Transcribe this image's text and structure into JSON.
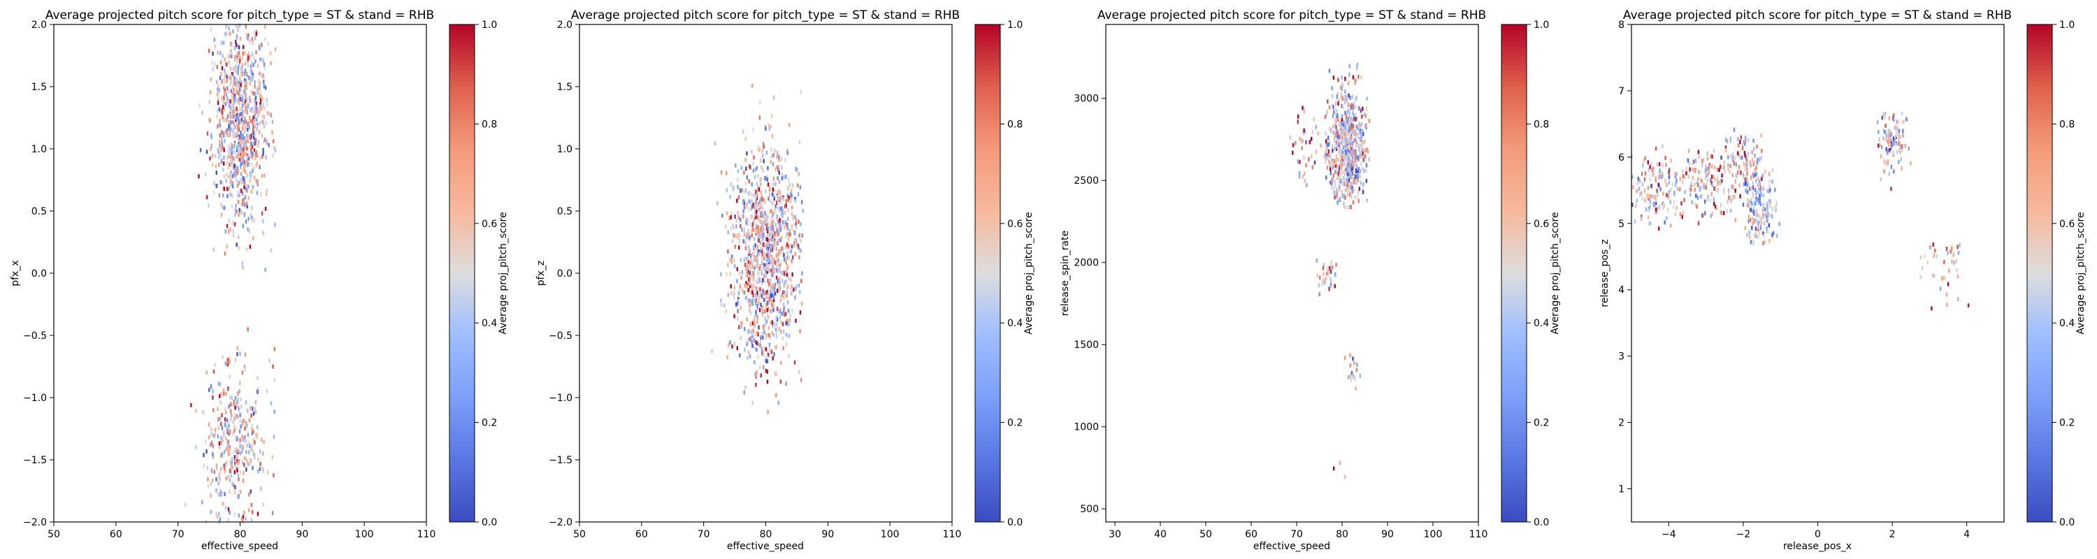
{
  "chart_data": [
    {
      "type": "heatmap",
      "title": "Average projected pitch score for pitch_type = ST & stand = RHB",
      "xlabel": "effective_speed",
      "ylabel": "pfx_x",
      "xlim": [
        50,
        110
      ],
      "ylim": [
        -2.0,
        2.0
      ],
      "xticks": [
        "50",
        "60",
        "70",
        "80",
        "90",
        "100",
        "110"
      ],
      "yticks": [
        "−2.0",
        "−1.5",
        "−1.0",
        "−0.5",
        "0.0",
        "0.5",
        "1.0",
        "1.5",
        "2.0"
      ],
      "colorbar": {
        "label": "Average proj_pitch_score",
        "range": [
          0.0,
          1.0
        ],
        "ticks": [
          "0.0",
          "0.2",
          "0.4",
          "0.6",
          "0.8",
          "1.0"
        ],
        "colormap": "coolwarm"
      },
      "clusters": [
        {
          "x_center": 80,
          "x_sd": 2.2,
          "y_center": 1.25,
          "y_sd": 0.45,
          "x_min": 72,
          "x_max": 86,
          "y_min": -0.2,
          "y_max": 2.0,
          "count": 900,
          "mean_score": 0.5
        },
        {
          "x_center": 79,
          "x_sd": 2.6,
          "y_center": -1.4,
          "y_sd": 0.4,
          "x_min": 68,
          "x_max": 86,
          "y_min": -2.0,
          "y_max": -0.45,
          "count": 380,
          "mean_score": 0.55
        }
      ]
    },
    {
      "type": "heatmap",
      "title": "Average projected pitch score for pitch_type = ST & stand = RHB",
      "xlabel": "effective_speed",
      "ylabel": "pfx_z",
      "xlim": [
        50,
        110
      ],
      "ylim": [
        -2.0,
        2.0
      ],
      "xticks": [
        "50",
        "60",
        "70",
        "80",
        "90",
        "100",
        "110"
      ],
      "yticks": [
        "−2.0",
        "−1.5",
        "−1.0",
        "−0.5",
        "0.0",
        "0.5",
        "1.0",
        "1.5",
        "2.0"
      ],
      "colorbar": {
        "label": "Average proj_pitch_score",
        "range": [
          0.0,
          1.0
        ],
        "ticks": [
          "0.0",
          "0.2",
          "0.4",
          "0.6",
          "0.8",
          "1.0"
        ],
        "colormap": "coolwarm"
      },
      "clusters": [
        {
          "x_center": 80,
          "x_sd": 2.8,
          "y_center": 0.15,
          "y_sd": 0.45,
          "x_min": 68,
          "x_max": 86,
          "y_min": -1.25,
          "y_max": 1.7,
          "count": 1100,
          "mean_score": 0.55
        }
      ]
    },
    {
      "type": "heatmap",
      "title": "Average projected pitch score for pitch_type = ST & stand = RHB",
      "xlabel": "effective_speed",
      "ylabel": "release_spin_rate",
      "xlim": [
        28,
        110
      ],
      "ylim": [
        420,
        3450
      ],
      "xticks": [
        "30",
        "40",
        "50",
        "60",
        "70",
        "80",
        "90",
        "100",
        "110"
      ],
      "yticks": [
        "500",
        "1000",
        "1500",
        "2000",
        "2500",
        "3000"
      ],
      "colorbar": {
        "label": "Average proj_pitch_score",
        "range": [
          0.0,
          1.0
        ],
        "ticks": [
          "0.0",
          "0.2",
          "0.4",
          "0.6",
          "0.8",
          "1.0"
        ],
        "colormap": "coolwarm"
      },
      "clusters": [
        {
          "x_center": 81,
          "x_sd": 2.3,
          "y_center": 2700,
          "y_sd": 170,
          "x_min": 76,
          "x_max": 86,
          "y_min": 2300,
          "y_max": 3300,
          "count": 650,
          "mean_score": 0.5
        },
        {
          "x_center": 72,
          "x_sd": 1.8,
          "y_center": 2700,
          "y_sd": 120,
          "x_min": 68,
          "x_max": 76,
          "y_min": 2400,
          "y_max": 2950,
          "count": 40,
          "mean_score": 0.6
        },
        {
          "x_center": 76.5,
          "x_sd": 1.2,
          "y_center": 1900,
          "y_sd": 70,
          "x_min": 74,
          "x_max": 79,
          "y_min": 1750,
          "y_max": 2050,
          "count": 35,
          "mean_score": 0.55
        },
        {
          "x_center": 82,
          "x_sd": 1.0,
          "y_center": 1350,
          "y_sd": 60,
          "x_min": 80,
          "x_max": 84,
          "y_min": 1200,
          "y_max": 1450,
          "count": 18,
          "mean_score": 0.5
        },
        {
          "x_center": 80,
          "x_sd": 1.0,
          "y_center": 750,
          "y_sd": 120,
          "x_min": 78,
          "x_max": 82,
          "y_min": 550,
          "y_max": 900,
          "count": 5,
          "mean_score": 0.7
        }
      ]
    },
    {
      "type": "heatmap",
      "title": "Average projected pitch score for pitch_type = ST & stand = RHB",
      "xlabel": "release_pos_x",
      "ylabel": "release_pos_z",
      "xlim": [
        -5.0,
        5.0
      ],
      "ylim": [
        0.5,
        8.0
      ],
      "xticks": [
        "−4",
        "−2",
        "0",
        "2",
        "4"
      ],
      "yticks": [
        "1",
        "2",
        "3",
        "4",
        "5",
        "6",
        "7",
        "8"
      ],
      "colorbar": {
        "label": "Average proj_pitch_score",
        "range": [
          0.0,
          1.0
        ],
        "ticks": [
          "0.0",
          "0.2",
          "0.4",
          "0.6",
          "0.8",
          "1.0"
        ],
        "colormap": "coolwarm"
      },
      "clusters": [
        {
          "x_center": -4.3,
          "x_sd": 0.4,
          "y_center": 5.55,
          "y_sd": 0.3,
          "x_min": -5.0,
          "x_max": -3.6,
          "y_min": 4.9,
          "y_max": 6.2,
          "count": 160,
          "mean_score": 0.55
        },
        {
          "x_center": -2.9,
          "x_sd": 0.45,
          "y_center": 5.6,
          "y_sd": 0.3,
          "x_min": -3.7,
          "x_max": -2.2,
          "y_min": 5.0,
          "y_max": 6.1,
          "count": 170,
          "mean_score": 0.6
        },
        {
          "x_center": -2.0,
          "x_sd": 0.3,
          "y_center": 5.95,
          "y_sd": 0.25,
          "x_min": -2.5,
          "x_max": -1.5,
          "y_min": 5.4,
          "y_max": 6.45,
          "count": 110,
          "mean_score": 0.6
        },
        {
          "x_center": -1.5,
          "x_sd": 0.3,
          "y_center": 5.2,
          "y_sd": 0.35,
          "x_min": -2.0,
          "x_max": -1.0,
          "y_min": 4.7,
          "y_max": 5.8,
          "count": 220,
          "mean_score": 0.45
        },
        {
          "x_center": 2.0,
          "x_sd": 0.25,
          "y_center": 6.25,
          "y_sd": 0.25,
          "x_min": 1.6,
          "x_max": 2.5,
          "y_min": 5.5,
          "y_max": 6.7,
          "count": 120,
          "mean_score": 0.45
        },
        {
          "x_center": 3.3,
          "x_sd": 0.35,
          "y_center": 4.4,
          "y_sd": 0.25,
          "x_min": 2.7,
          "x_max": 4.1,
          "y_min": 3.3,
          "y_max": 4.7,
          "count": 45,
          "mean_score": 0.6
        }
      ]
    }
  ]
}
